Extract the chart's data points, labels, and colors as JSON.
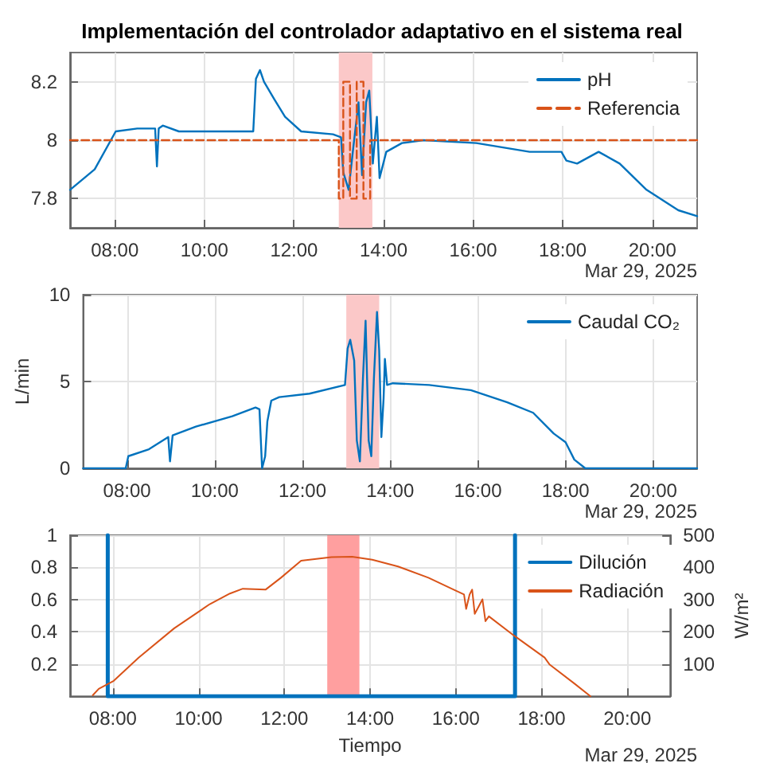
{
  "chart_data": [
    {
      "type": "line",
      "title": "Implementación del controlador adaptativo en el sistema real",
      "xlim": [
        7,
        21
      ],
      "xticks": [
        {
          "value": 8,
          "label": "08:00"
        },
        {
          "value": 10,
          "label": "10:00"
        },
        {
          "value": 12,
          "label": "12:00"
        },
        {
          "value": 14,
          "label": "14:00"
        },
        {
          "value": 16,
          "label": "16:00"
        },
        {
          "value": 18,
          "label": "18:00"
        },
        {
          "value": 20,
          "label": "20:00"
        }
      ],
      "ylim": [
        7.7,
        8.3
      ],
      "yticks": [
        7.8,
        8,
        8.2
      ],
      "grid": true,
      "legend": "top right",
      "marker": "none",
      "annotations": [
        "Mar 29, 2025"
      ],
      "bands": [
        {
          "axis": "x",
          "from": 13,
          "to": 13.75,
          "color": "#fbc8c8"
        }
      ],
      "series": [
        {
          "name": "pH",
          "color": "#0072bd",
          "x": [
            7,
            7.55,
            8.02,
            8.5,
            8.9,
            8.94,
            8.98,
            9.07,
            9.43,
            10.14,
            11.09,
            11.15,
            11.24,
            11.33,
            11.56,
            11.8,
            12.16,
            12.87,
            13.05,
            13.1,
            13.22,
            13.32,
            13.44,
            13.52,
            13.61,
            13.68,
            13.76,
            13.85,
            13.91,
            14.06,
            14.41,
            14.89,
            16.07,
            17.26,
            17.97,
            18.08,
            18.32,
            18.8,
            19.27,
            19.87,
            20.58,
            21
          ],
          "values": [
            7.83,
            7.9,
            8.03,
            8.04,
            8.04,
            7.91,
            8.04,
            8.05,
            8.03,
            8.03,
            8.03,
            8.21,
            8.24,
            8.2,
            8.14,
            8.08,
            8.03,
            8.02,
            8.01,
            7.89,
            7.83,
            7.97,
            8.13,
            7.88,
            8.13,
            8.17,
            7.92,
            8.08,
            7.87,
            7.96,
            7.99,
            8,
            7.99,
            7.96,
            7.96,
            7.93,
            7.92,
            7.96,
            7.92,
            7.83,
            7.76,
            7.74
          ]
        },
        {
          "name": "Referencia",
          "color": "#d95319",
          "line_style": "dashed",
          "x": [
            7,
            13,
            13,
            13.1,
            13.1,
            13.25,
            13.25,
            13.4,
            13.4,
            13.55,
            13.55,
            13.7,
            13.7,
            21
          ],
          "values": [
            8,
            8,
            7.8,
            7.8,
            8.2,
            8.2,
            7.8,
            7.8,
            8.2,
            8.2,
            7.8,
            7.8,
            8,
            8
          ]
        }
      ]
    },
    {
      "type": "line",
      "ylabel": "L/min",
      "xlim": [
        7,
        21
      ],
      "xticks": [
        {
          "value": 8,
          "label": "08:00"
        },
        {
          "value": 10,
          "label": "10:00"
        },
        {
          "value": 12,
          "label": "12:00"
        },
        {
          "value": 14,
          "label": "14:00"
        },
        {
          "value": 16,
          "label": "16:00"
        },
        {
          "value": 18,
          "label": "18:00"
        },
        {
          "value": 20,
          "label": "20:00"
        }
      ],
      "ylim": [
        0,
        10
      ],
      "yticks": [
        0,
        5,
        10
      ],
      "grid": true,
      "legend": "top right",
      "marker": "none",
      "annotations": [
        "Mar 29, 2025"
      ],
      "bands": [
        {
          "axis": "x",
          "from": 13,
          "to": 13.75,
          "color": "#fbc8c8"
        }
      ],
      "series": [
        {
          "name": "Caudal CO₂",
          "color": "#0072bd",
          "x": [
            7,
            7.97,
            8.03,
            8.5,
            8.94,
            8.98,
            9.04,
            9.57,
            10.4,
            10.93,
            11.02,
            11.08,
            11.15,
            11.2,
            11.29,
            11.47,
            12.16,
            12.97,
            13.03,
            13.09,
            13.18,
            13.24,
            13.31,
            13.38,
            13.44,
            13.51,
            13.57,
            13.63,
            13.7,
            13.75,
            13.8,
            13.85,
            13.88,
            13.93,
            14.06,
            14.89,
            15.84,
            16.67,
            17.26,
            17.73,
            18,
            18.2,
            18.45,
            21
          ],
          "values": [
            0,
            0,
            0.7,
            1.1,
            1.8,
            0.4,
            1.9,
            2.4,
            3,
            3.5,
            3.4,
            0,
            0.7,
            2.7,
            3.9,
            4.1,
            4.3,
            4.8,
            6.9,
            7.4,
            6.2,
            1.6,
            0.4,
            5.2,
            8.5,
            1.6,
            0.7,
            5.2,
            9,
            6.8,
            1.8,
            4,
            6.3,
            4.8,
            4.9,
            4.8,
            4.5,
            3.8,
            3.2,
            2,
            1.5,
            0.5,
            0,
            0
          ]
        }
      ]
    },
    {
      "type": "line",
      "xlabel": "Tiempo",
      "y2label": "W/m²",
      "xlim": [
        7,
        21
      ],
      "xticks": [
        {
          "value": 8,
          "label": "08:00"
        },
        {
          "value": 10,
          "label": "10:00"
        },
        {
          "value": 12,
          "label": "12:00"
        },
        {
          "value": 14,
          "label": "14:00"
        },
        {
          "value": 16,
          "label": "16:00"
        },
        {
          "value": 18,
          "label": "18:00"
        },
        {
          "value": 20,
          "label": "20:00"
        }
      ],
      "ylim": [
        0,
        1
      ],
      "yticks": [
        0.2,
        0.4,
        0.6,
        0.8,
        1
      ],
      "y2lim": [
        0,
        500
      ],
      "y2ticks": [
        100,
        200,
        300,
        400,
        500
      ],
      "grid": true,
      "legend": "top right",
      "marker": "none",
      "annotations": [
        "Mar 29, 2025"
      ],
      "bands": [
        {
          "axis": "x",
          "from": 13,
          "to": 13.75,
          "color": "#ff9f9f"
        }
      ],
      "series": [
        {
          "name": "Dilución",
          "color": "#0072bd",
          "x": [
            7.88,
            7.88,
            7.88,
            17.38,
            17.38
          ],
          "values": [
            0,
            1,
            0,
            0,
            1
          ]
        },
        {
          "name": "Radiación",
          "color": "#d95319",
          "axis": "y2",
          "x": [
            7.53,
            7.67,
            8.02,
            8.6,
            9.43,
            10.26,
            10.73,
            11.03,
            11.56,
            11.92,
            12.39,
            13.1,
            13.58,
            14.05,
            14.65,
            15.36,
            15.95,
            16.19,
            16.24,
            16.32,
            16.38,
            16.44,
            16.53,
            16.62,
            16.69,
            16.77,
            17.36,
            18.07,
            18.19,
            18.78,
            19.14
          ],
          "values": [
            3,
            23,
            48,
            120,
            211,
            286,
            319,
            334,
            331,
            368,
            421,
            432,
            433,
            424,
            403,
            368,
            331,
            316,
            271,
            316,
            331,
            256,
            278,
            301,
            233,
            248,
            188,
            120,
            98,
            38,
            0
          ]
        }
      ]
    }
  ]
}
